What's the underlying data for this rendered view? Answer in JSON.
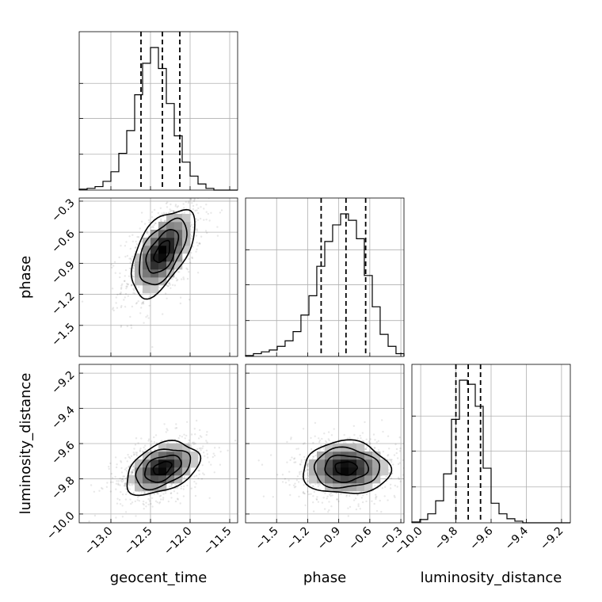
{
  "chart_data": {
    "type": "corner",
    "parameters": [
      "geocent_time",
      "phase",
      "luminosity_distance"
    ],
    "ranges": {
      "geocent_time": [
        -13.4,
        -11.4
      ],
      "phase": [
        -1.8,
        -0.27
      ],
      "luminosity_distance": [
        -10.05,
        -9.15
      ]
    },
    "ticks": {
      "geocent_time": [
        -13.0,
        -12.5,
        -12.0,
        -11.5
      ],
      "phase": [
        -1.5,
        -1.2,
        -0.9,
        -0.6,
        -0.3
      ],
      "luminosity_distance": [
        -10.0,
        -9.8,
        -9.6,
        -9.4,
        -9.2
      ]
    },
    "tick_labels": {
      "geocent_time": [
        "−13.0",
        "−12.5",
        "−12.0",
        "−11.5"
      ],
      "phase": [
        "−1.5",
        "−1.2",
        "−0.9",
        "−0.6",
        "−0.3"
      ],
      "luminosity_distance": [
        "−10.0",
        "−9.8",
        "−9.6",
        "−9.4",
        "−9.2"
      ]
    },
    "histograms": {
      "geocent_time": {
        "edges": [
          -13.4,
          -13.3,
          -13.2,
          -13.1,
          -13.0,
          -12.9,
          -12.8,
          -12.7,
          -12.6,
          -12.5,
          -12.4,
          -12.3,
          -12.2,
          -12.1,
          -12.0,
          -11.9,
          -11.8,
          -11.7,
          -11.6,
          -11.5,
          -11.4
        ],
        "counts": [
          1,
          2,
          4,
          10,
          21,
          42,
          68,
          109,
          145,
          163,
          139,
          99,
          62,
          32,
          16,
          7,
          2,
          0,
          0,
          0
        ],
        "quantiles": [
          -12.62,
          -12.35,
          -12.13
        ]
      },
      "phase": {
        "edges": [
          -1.8,
          -1.724,
          -1.647,
          -1.571,
          -1.494,
          -1.418,
          -1.341,
          -1.265,
          -1.188,
          -1.112,
          -1.035,
          -0.959,
          -0.882,
          -0.806,
          -0.729,
          -0.653,
          -0.576,
          -0.5,
          -0.423,
          -0.347,
          -0.27
        ],
        "counts": [
          1,
          3,
          5,
          7,
          11,
          17,
          27,
          45,
          66,
          98,
          125,
          143,
          155,
          148,
          128,
          88,
          54,
          24,
          11,
          3
        ],
        "quantiles": [
          -1.07,
          -0.83,
          -0.64
        ]
      },
      "luminosity_distance": {
        "edges": [
          -10.05,
          -10.005,
          -9.96,
          -9.915,
          -9.87,
          -9.825,
          -9.78,
          -9.735,
          -9.69,
          -9.645,
          -9.6,
          -9.555,
          -9.51,
          -9.465,
          -9.42,
          -9.375,
          -9.33,
          -9.285,
          -9.24,
          -9.195,
          -9.15
        ],
        "counts": [
          1,
          4,
          11,
          27,
          60,
          127,
          175,
          170,
          143,
          67,
          24,
          11,
          5,
          2,
          0,
          0,
          0,
          0,
          0,
          0
        ],
        "quantiles": [
          -9.8,
          -9.73,
          -9.66
        ]
      }
    },
    "pairs": [
      {
        "x": "geocent_time",
        "y": "phase",
        "center": [
          -12.35,
          -0.79
        ],
        "sigma": [
          0.2,
          0.21
        ],
        "rho": 0.55
      },
      {
        "x": "geocent_time",
        "y": "luminosity_distance",
        "center": [
          -12.35,
          -9.74
        ],
        "sigma": [
          0.23,
          0.075
        ],
        "rho": 0.4
      },
      {
        "x": "phase",
        "y": "luminosity_distance",
        "center": [
          -0.83,
          -9.74
        ],
        "sigma": [
          0.21,
          0.075
        ],
        "rho": 0.0
      }
    ],
    "contour_levels_sigma": [
      0.5,
      1.0,
      1.5,
      2.0
    ]
  }
}
